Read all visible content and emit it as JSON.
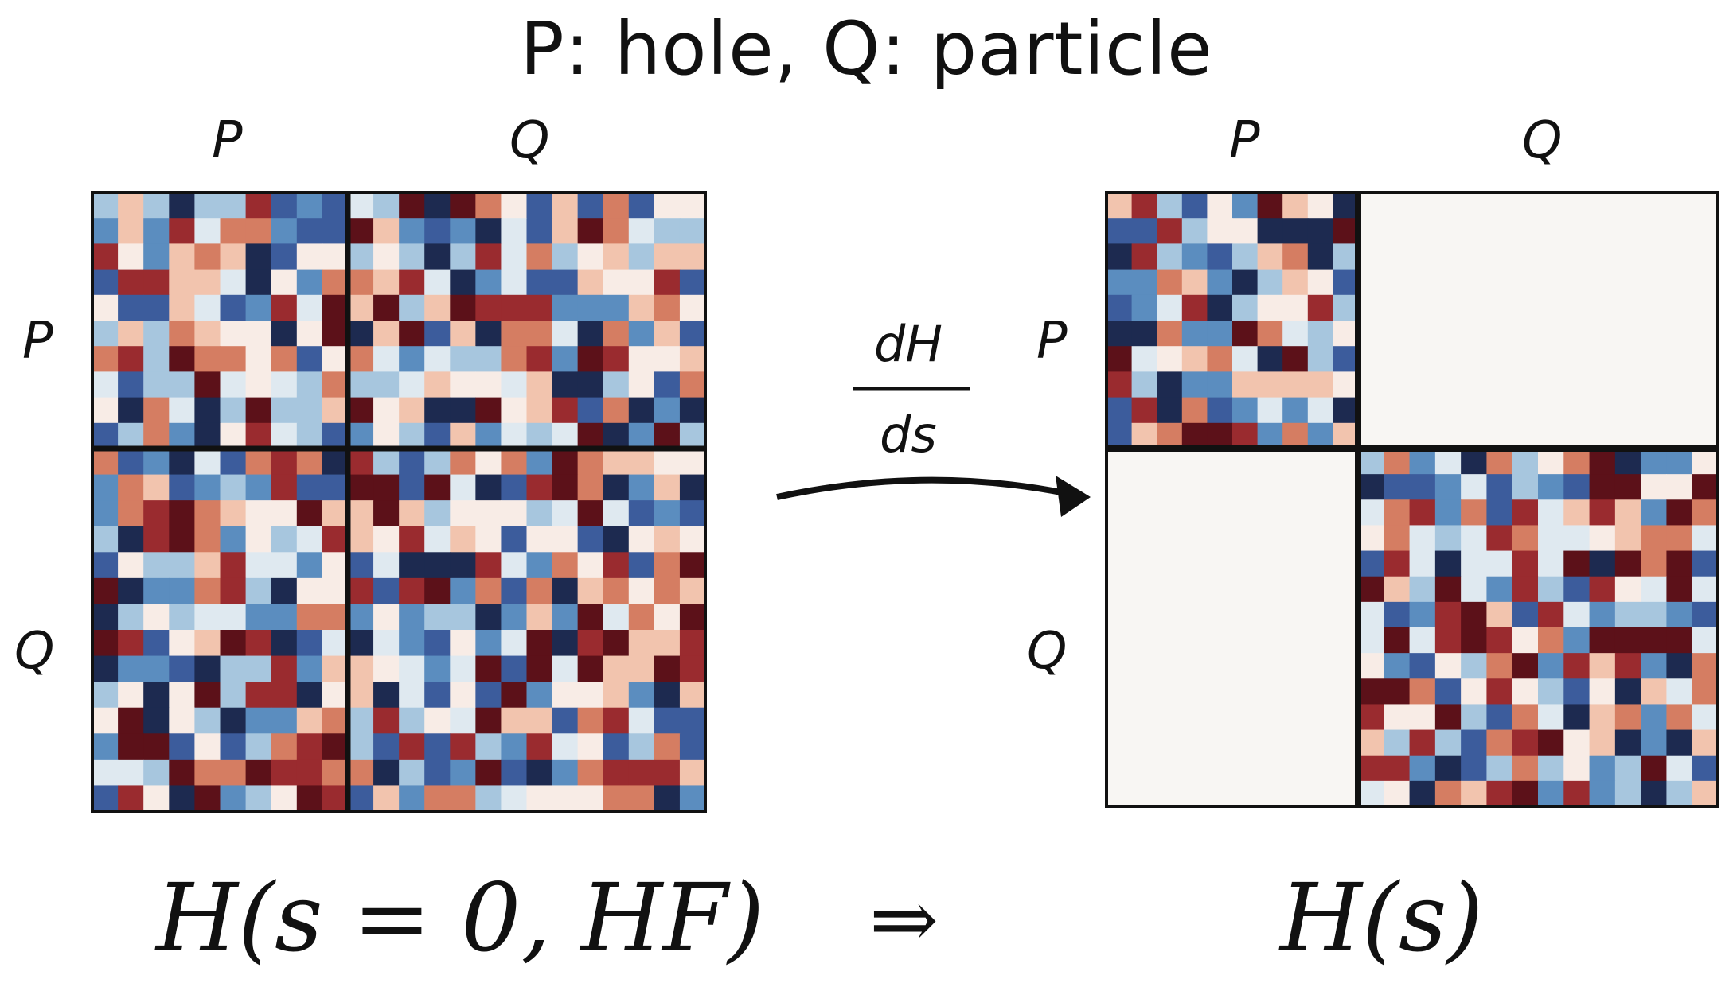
{
  "title": "P: hole, Q: particle",
  "left_matrix": {
    "col_labels": [
      "P",
      "Q"
    ],
    "row_labels": [
      "P",
      "Q"
    ],
    "caption": "H(s = 0, HF)"
  },
  "transition": {
    "numerator": "dH",
    "denominator": "ds",
    "implies_symbol": "⇒"
  },
  "right_matrix": {
    "col_labels": [
      "P",
      "Q"
    ],
    "row_labels": [
      "P",
      "Q"
    ],
    "caption": "H(s)"
  },
  "colors": {
    "palette": [
      "#5c1119",
      "#9a2b2f",
      "#d57d62",
      "#f2c4ae",
      "#f8ece6",
      "#dfe9f0",
      "#a7c6de",
      "#5b8dbf",
      "#3c5c9c",
      "#1d2a50"
    ],
    "near_zero": "#f8f6f3",
    "border": "#111111"
  }
}
